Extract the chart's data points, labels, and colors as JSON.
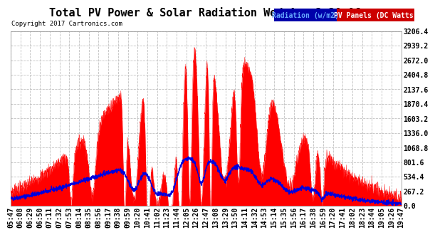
{
  "title": "Total PV Power & Solar Radiation Wed Aug 2 20:06",
  "copyright": "Copyright 2017 Cartronics.com",
  "legend_radiation": "Radiation (w/m2)",
  "legend_pv": "PV Panels (DC Watts)",
  "yticks": [
    0.0,
    267.2,
    534.4,
    801.6,
    1068.8,
    1336.0,
    1603.2,
    1870.4,
    2137.6,
    2404.8,
    2672.0,
    2939.2,
    3206.4
  ],
  "ymax": 3206.4,
  "bg_color": "#ffffff",
  "plot_bg_color": "#ffffff",
  "grid_color": "#c0c0c0",
  "pv_color": "#ff0000",
  "radiation_color": "#0000dd",
  "title_fontsize": 11,
  "tick_fontsize": 7,
  "xtick_labels": [
    "05:47",
    "06:08",
    "06:29",
    "06:50",
    "07:11",
    "07:32",
    "07:53",
    "08:14",
    "08:35",
    "08:56",
    "09:17",
    "09:38",
    "09:59",
    "10:20",
    "10:41",
    "11:02",
    "11:23",
    "11:44",
    "12:05",
    "12:26",
    "12:47",
    "13:08",
    "13:29",
    "13:50",
    "14:11",
    "14:32",
    "14:53",
    "15:14",
    "15:35",
    "15:56",
    "16:17",
    "16:38",
    "16:59",
    "17:20",
    "17:41",
    "18:02",
    "18:23",
    "18:44",
    "19:05",
    "19:26",
    "19:47"
  ],
  "legend_rad_bg": "#0000aa",
  "legend_rad_fg": "#66aaff",
  "legend_pv_bg": "#cc0000",
  "legend_pv_fg": "#ffffff"
}
